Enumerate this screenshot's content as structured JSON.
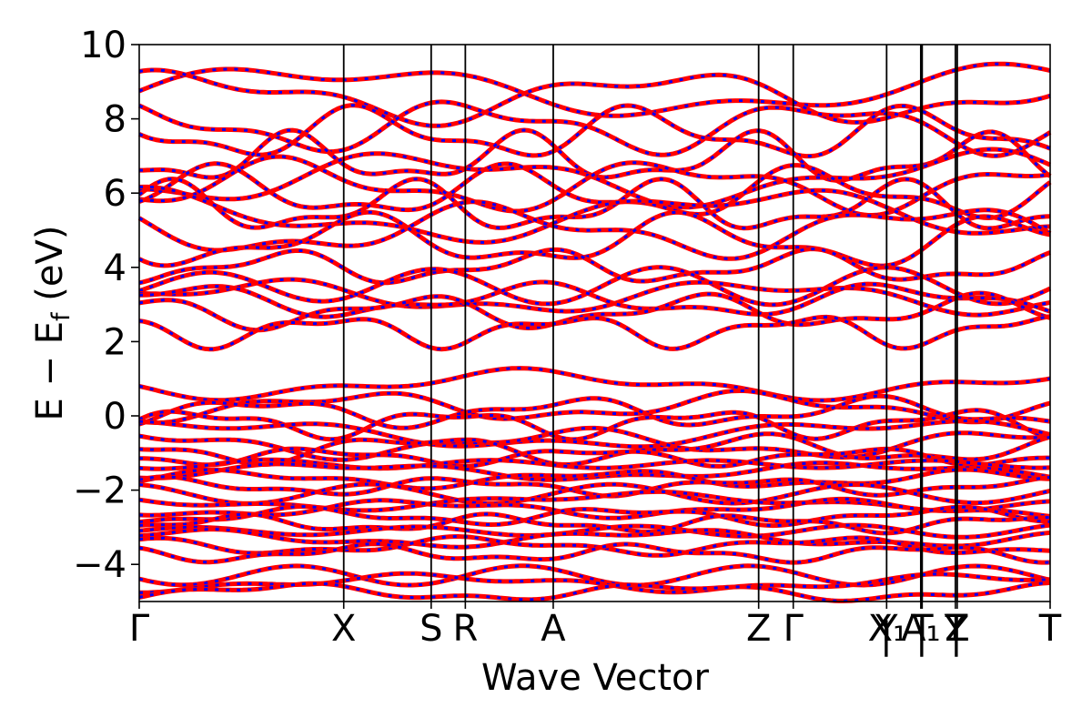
{
  "chart_data": {
    "type": "line",
    "xlabel": "Wave Vector",
    "ylabel": "E − E",
    "ylabel_sub": "f",
    "ylabel_unit": " (eV)",
    "ylim": [
      -5,
      10
    ],
    "yticks": [
      10,
      8,
      6,
      4,
      2,
      0,
      -2,
      -4
    ],
    "ytick_labels": [
      "10",
      "8",
      "6",
      "4",
      "2",
      "0",
      "−2",
      "−4"
    ],
    "kpath": [
      {
        "label": "Γ",
        "x": 0.0
      },
      {
        "label": "X",
        "x": 0.2245
      },
      {
        "label": "S",
        "x": 0.3205
      },
      {
        "label": "R",
        "x": 0.358
      },
      {
        "label": "A",
        "x": 0.4545
      },
      {
        "label": "Z",
        "x": 0.68
      },
      {
        "label": "Γ",
        "x": 0.718
      },
      {
        "label": "Y",
        "x": 0.8205
      },
      {
        "label": "X₁",
        "x": 0.8215
      },
      {
        "label": "A₁",
        "x": 0.858
      },
      {
        "label": "T",
        "x": 0.8595
      },
      {
        "label": "Y",
        "x": 0.896
      },
      {
        "label": "T",
        "x": 0.897
      },
      {
        "label": "Z",
        "x": 0.898
      },
      {
        "label": "T",
        "x": 1.0
      }
    ],
    "kpath_extra_labels": [
      {
        "label": "|",
        "x": 0.82
      },
      {
        "label": "|",
        "x": 0.859
      },
      {
        "label": "|",
        "x": 0.897
      }
    ],
    "series": [
      {
        "color": "#ff0000",
        "style": "solid"
      },
      {
        "color": "#0000ff",
        "style": "dotted"
      }
    ],
    "band_energies_at_gamma": [
      8.75,
      8.6,
      7.8,
      7.6,
      6.9,
      6.4,
      6.2,
      6.0,
      5.6,
      5.4,
      5.0,
      4.7,
      4.0,
      3.5,
      3.2,
      3.1,
      2.8,
      2.3,
      0.85,
      0.25,
      0.1,
      -0.2,
      -0.5,
      -0.75,
      -0.9,
      -1.1,
      -1.3,
      -1.5,
      -1.7,
      -1.9,
      -2.1,
      -2.3,
      -2.5,
      -2.7,
      -2.9,
      -3.1,
      -3.3,
      -3.5,
      -3.7,
      -4.3,
      -4.5,
      -4.75
    ]
  }
}
